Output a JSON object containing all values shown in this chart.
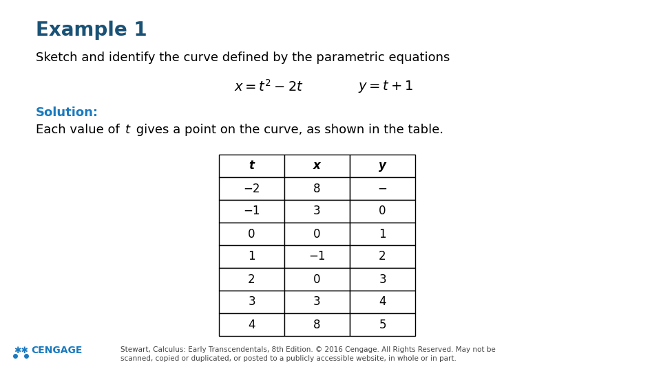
{
  "title": "Example 1",
  "title_color": "#1a5276",
  "title_fontsize": 20,
  "subtitle": "Sketch and identify the curve defined by the parametric equations",
  "subtitle_fontsize": 13,
  "solution_label": "Solution:",
  "solution_color": "#1a7abf",
  "solution_fontsize": 13,
  "body_fontsize": 13,
  "table_headers": [
    "t",
    "x",
    "y"
  ],
  "table_data": [
    [
      "−2",
      "8",
      "−"
    ],
    [
      "−1",
      "3",
      "0"
    ],
    [
      "0",
      "0",
      "1"
    ],
    [
      "1",
      "−1",
      "2"
    ],
    [
      "2",
      "0",
      "3"
    ],
    [
      "3",
      "3",
      "4"
    ],
    [
      "4",
      "8",
      "5"
    ]
  ],
  "footer_text": "Stewart, Calculus: Early Transcendentals, 8th Edition. © 2016 Cengage. All Rights Reserved. May not be\nscanned, copied or duplicated, or posted to a publicly accessible website, in whole or in part.",
  "footer_fontsize": 7.5,
  "footer_color": "#444444",
  "cengage_color": "#1a7abf",
  "bg_color": "#ffffff"
}
